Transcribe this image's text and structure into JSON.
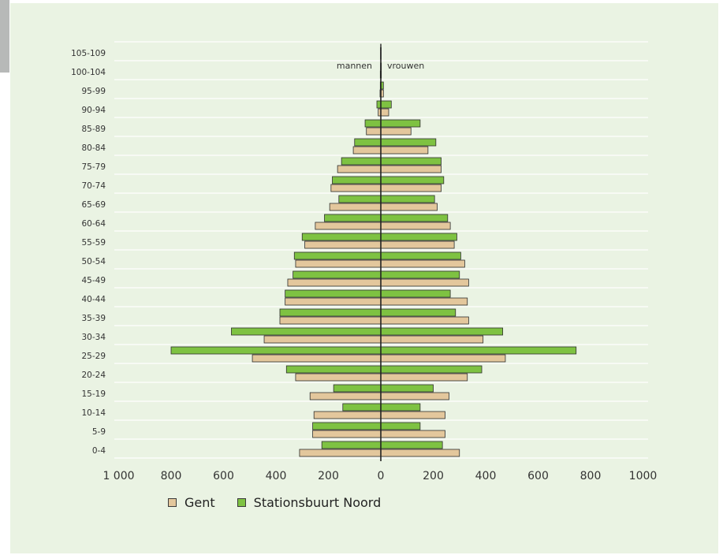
{
  "chart_data": {
    "type": "bar",
    "orientation": "horizontal",
    "categories": [
      "0-4",
      "5-9",
      "10-14",
      "15-19",
      "20-24",
      "25-29",
      "30-34",
      "35-39",
      "40-44",
      "45-49",
      "50-54",
      "55-59",
      "60-64",
      "65-69",
      "70-74",
      "75-79",
      "80-84",
      "85-89",
      "90-94",
      "95-99",
      "100-104",
      "105-109"
    ],
    "series": [
      {
        "name": "Gent",
        "color": "#e3c79c",
        "male": [
          310,
          260,
          255,
          270,
          325,
          490,
          445,
          385,
          365,
          355,
          325,
          290,
          250,
          195,
          190,
          165,
          105,
          55,
          10,
          3,
          2,
          1
        ],
        "female": [
          300,
          245,
          245,
          260,
          330,
          475,
          390,
          335,
          330,
          335,
          320,
          280,
          265,
          215,
          230,
          230,
          180,
          115,
          30,
          10,
          2,
          1
        ]
      },
      {
        "name": "Stationsbuurt Noord",
        "color": "#7ec242",
        "male": [
          225,
          260,
          145,
          180,
          360,
          800,
          570,
          385,
          365,
          335,
          330,
          300,
          215,
          160,
          185,
          150,
          100,
          60,
          15,
          2,
          1,
          1
        ],
        "female": [
          235,
          150,
          150,
          200,
          385,
          745,
          465,
          285,
          265,
          300,
          305,
          290,
          255,
          205,
          240,
          230,
          210,
          150,
          40,
          10,
          2,
          1
        ]
      }
    ],
    "xlim": [
      -1000,
      1000
    ],
    "x_ticks": [
      -1000,
      -800,
      -600,
      -400,
      -200,
      0,
      200,
      400,
      600,
      800,
      1000
    ],
    "x_tick_labels": [
      "1 000",
      "800",
      "600",
      "400",
      "200",
      "0",
      "200",
      "400",
      "600",
      "800",
      "1000"
    ],
    "annotations": {
      "left": "mannen",
      "right": "vrouwen"
    },
    "grid": true,
    "legend_position": "bottom-left"
  }
}
